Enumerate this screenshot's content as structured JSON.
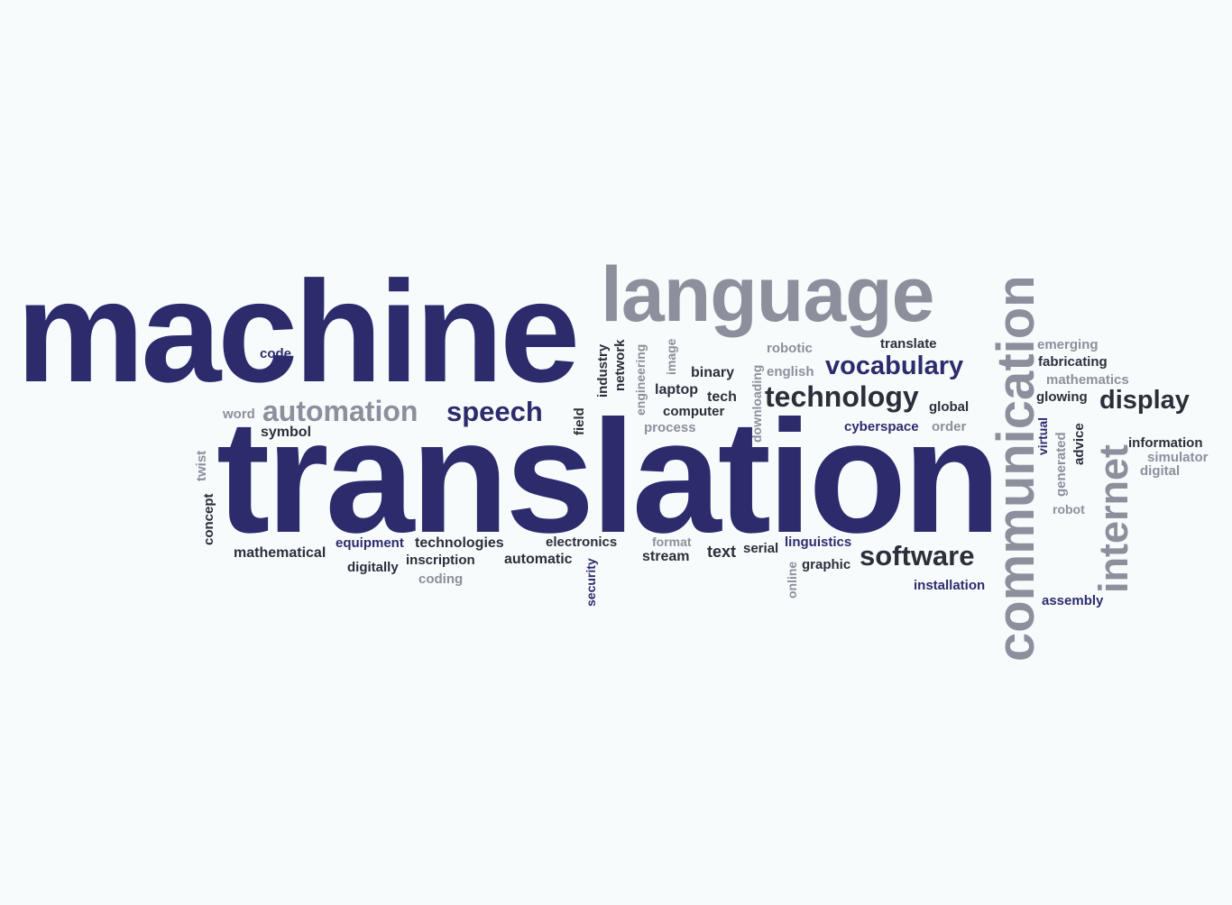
{
  "colors": {
    "background": "#f8fbfc",
    "navy": "#2c2c6c",
    "dark": "#2b2f3a",
    "grey": "#8d8f9c"
  },
  "words": {
    "machine": "machine",
    "translation": "translation",
    "language": "language",
    "communication": "communication",
    "internet": "internet",
    "technology": "technology",
    "vocabulary": "vocabulary",
    "display": "display",
    "software": "software",
    "automation": "automation",
    "speech": "speech",
    "code": "code",
    "word": "word",
    "symbol": "symbol",
    "concept": "concept",
    "twist": "twist",
    "industry": "industry",
    "network": "network",
    "engineering": "engineering",
    "image": "image",
    "binary": "binary",
    "laptop": "laptop",
    "tech": "tech",
    "computer": "computer",
    "process": "process",
    "field": "field",
    "downloading": "downloading",
    "robotic": "robotic",
    "english": "english",
    "translate": "translate",
    "global": "global",
    "cyberspace": "cyberspace",
    "order": "order",
    "emerging": "emerging",
    "fabricating": "fabricating",
    "mathematics": "mathematics",
    "glowing": "glowing",
    "virtual": "virtual",
    "generated": "generated",
    "advice": "advice",
    "information": "information",
    "simulator": "simulator",
    "digital": "digital",
    "robot": "robot",
    "assembly": "assembly",
    "mathematical": "mathematical",
    "equipment": "equipment",
    "technologies": "technologies",
    "electronics": "electronics",
    "format": "format",
    "linguistics": "linguistics",
    "digitally": "digitally",
    "inscription": "inscription",
    "automatic": "automatic",
    "coding": "coding",
    "security": "security",
    "stream": "stream",
    "text": "text",
    "serial": "serial",
    "online": "online",
    "graphic": "graphic",
    "installation": "installation"
  }
}
